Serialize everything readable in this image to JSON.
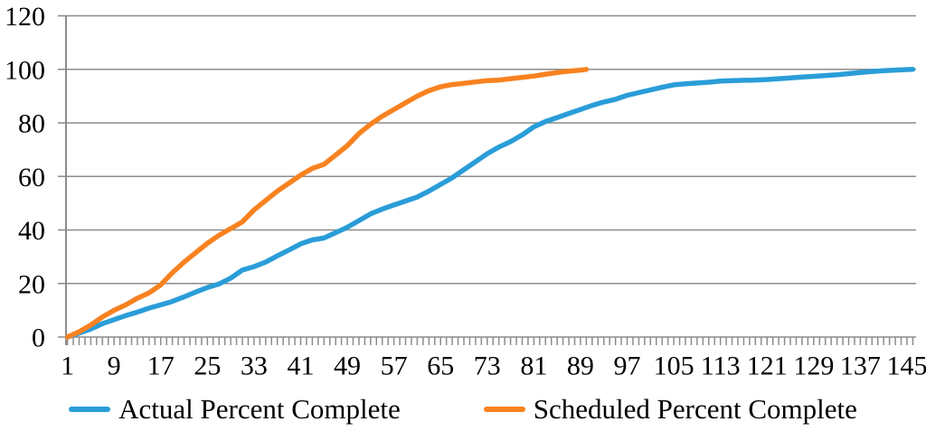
{
  "chart_data": {
    "type": "line",
    "title": "",
    "xlabel": "",
    "ylabel": "",
    "grid": true,
    "legend_position": "bottom",
    "x_axis": {
      "min": 1,
      "max": 146,
      "minor_tick_interval": 1,
      "label_interval": 8,
      "label_values": [
        1,
        9,
        17,
        25,
        33,
        41,
        49,
        57,
        65,
        73,
        81,
        89,
        97,
        105,
        113,
        121,
        129,
        137,
        145
      ]
    },
    "y_axis": {
      "min": 0,
      "max": 120,
      "tick_step": 20,
      "tick_values": [
        0,
        20,
        40,
        60,
        80,
        100,
        120
      ]
    },
    "colors": {
      "axis": "#8C8C8C",
      "gridline": "#8C8C8C",
      "text": "#000000",
      "background": "#FFFFFF"
    },
    "series": [
      {
        "name": "Actual Percent Complete",
        "color": "#2A9DD8",
        "points": [
          [
            1,
            0
          ],
          [
            3,
            1.5
          ],
          [
            5,
            3
          ],
          [
            7,
            5
          ],
          [
            9,
            6.5
          ],
          [
            11,
            8
          ],
          [
            13,
            9.3
          ],
          [
            15,
            10.8
          ],
          [
            17,
            12
          ],
          [
            19,
            13.3
          ],
          [
            21,
            15
          ],
          [
            23,
            16.8
          ],
          [
            25,
            18.5
          ],
          [
            27,
            19.8
          ],
          [
            29,
            22
          ],
          [
            31,
            25
          ],
          [
            33,
            26.3
          ],
          [
            35,
            28
          ],
          [
            37,
            30.3
          ],
          [
            39,
            32.5
          ],
          [
            41,
            34.8
          ],
          [
            43,
            36.3
          ],
          [
            45,
            37
          ],
          [
            47,
            39
          ],
          [
            49,
            41
          ],
          [
            51,
            43.5
          ],
          [
            53,
            46
          ],
          [
            55,
            47.8
          ],
          [
            57,
            49.3
          ],
          [
            59,
            50.8
          ],
          [
            61,
            52.3
          ],
          [
            63,
            54.5
          ],
          [
            65,
            57
          ],
          [
            67,
            59.5
          ],
          [
            69,
            62.5
          ],
          [
            71,
            65.5
          ],
          [
            73,
            68.5
          ],
          [
            75,
            71
          ],
          [
            77,
            73
          ],
          [
            79,
            75.5
          ],
          [
            81,
            78.5
          ],
          [
            83,
            80.5
          ],
          [
            85,
            82
          ],
          [
            87,
            83.5
          ],
          [
            89,
            85
          ],
          [
            91,
            86.5
          ],
          [
            93,
            87.8
          ],
          [
            95,
            88.8
          ],
          [
            97,
            90.3
          ],
          [
            99,
            91.3
          ],
          [
            101,
            92.3
          ],
          [
            103,
            93.3
          ],
          [
            105,
            94.2
          ],
          [
            107,
            94.6
          ],
          [
            109,
            94.9
          ],
          [
            111,
            95.2
          ],
          [
            113,
            95.6
          ],
          [
            115,
            95.8
          ],
          [
            117,
            95.9
          ],
          [
            119,
            96
          ],
          [
            121,
            96.2
          ],
          [
            123,
            96.5
          ],
          [
            125,
            96.8
          ],
          [
            127,
            97.1
          ],
          [
            129,
            97.4
          ],
          [
            131,
            97.7
          ],
          [
            133,
            98
          ],
          [
            135,
            98.4
          ],
          [
            137,
            98.8
          ],
          [
            139,
            99.2
          ],
          [
            141,
            99.5
          ],
          [
            143,
            99.7
          ],
          [
            145,
            99.9
          ],
          [
            146,
            100
          ]
        ]
      },
      {
        "name": "Scheduled Percent Complete",
        "color": "#F88220",
        "points": [
          [
            1,
            0
          ],
          [
            3,
            2
          ],
          [
            5,
            4.5
          ],
          [
            7,
            7.5
          ],
          [
            9,
            10
          ],
          [
            11,
            12
          ],
          [
            13,
            14.5
          ],
          [
            15,
            16.5
          ],
          [
            17,
            19.5
          ],
          [
            19,
            24
          ],
          [
            21,
            28
          ],
          [
            23,
            31.5
          ],
          [
            25,
            35
          ],
          [
            27,
            38
          ],
          [
            29,
            40.5
          ],
          [
            31,
            43
          ],
          [
            33,
            47.5
          ],
          [
            35,
            51
          ],
          [
            37,
            54.5
          ],
          [
            39,
            57.5
          ],
          [
            41,
            60.5
          ],
          [
            43,
            63
          ],
          [
            45,
            64.5
          ],
          [
            47,
            68
          ],
          [
            49,
            71.5
          ],
          [
            51,
            76
          ],
          [
            53,
            79.5
          ],
          [
            55,
            82.5
          ],
          [
            57,
            85
          ],
          [
            59,
            87.5
          ],
          [
            61,
            90
          ],
          [
            63,
            92
          ],
          [
            65,
            93.5
          ],
          [
            67,
            94.3
          ],
          [
            69,
            94.8
          ],
          [
            71,
            95.3
          ],
          [
            73,
            95.8
          ],
          [
            75,
            96
          ],
          [
            77,
            96.5
          ],
          [
            79,
            97
          ],
          [
            81,
            97.5
          ],
          [
            83,
            98.2
          ],
          [
            85,
            98.8
          ],
          [
            87,
            99.3
          ],
          [
            89,
            99.7
          ],
          [
            90,
            100
          ]
        ]
      }
    ]
  },
  "legend": {
    "items": [
      {
        "label": "Actual Percent Complete",
        "swatch": "blue-line-swatch"
      },
      {
        "label": "Scheduled Percent Complete",
        "swatch": "orange-line-swatch"
      }
    ]
  }
}
